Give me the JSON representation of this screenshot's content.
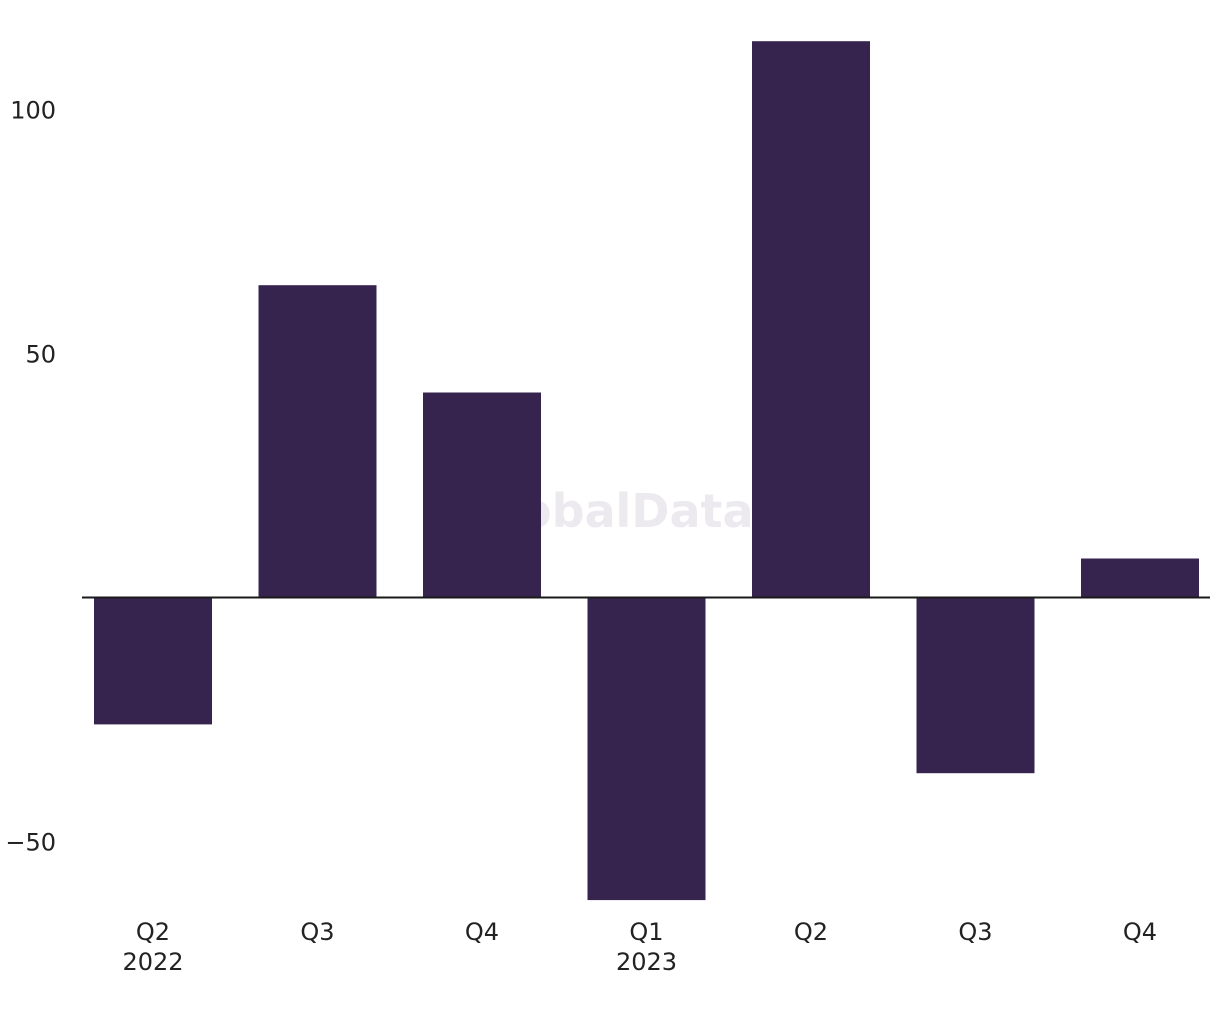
{
  "chart_data": {
    "type": "bar",
    "categories": [
      "Q2",
      "Q3",
      "Q4",
      "Q1",
      "Q2",
      "Q3",
      "Q4"
    ],
    "year_labels": [
      "2022",
      "",
      "",
      "2023",
      "",
      "",
      ""
    ],
    "values": [
      -26,
      64,
      42,
      -62,
      114,
      -36,
      8
    ],
    "yticks": [
      -50,
      50,
      100
    ],
    "ytick_labels": [
      "−50",
      "50",
      "100"
    ],
    "ylim": [
      -62,
      114
    ],
    "title": "",
    "xlabel": "",
    "ylabel": "",
    "grid": false,
    "bar_color": "#36244f",
    "axis_color": "#1a1a1a"
  },
  "watermark": {
    "text": "GlobalData"
  }
}
